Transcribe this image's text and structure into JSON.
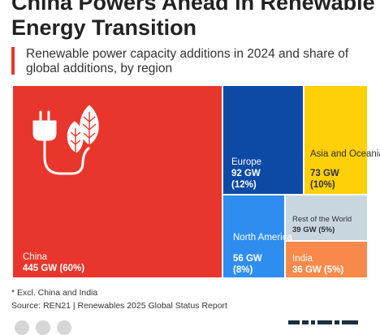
{
  "header": {
    "title": "China Powers Ahead in Renewable Energy Transition",
    "subtitle": "Renewable power capacity additions in 2024 and share of global additions, by region"
  },
  "footer": {
    "footnote": "* Excl. China and India",
    "source": "Source: REN21 | Renewables 2025 Global Status Report"
  },
  "icons": [
    "plug-icon",
    "leaves-icon"
  ],
  "chart_data": {
    "type": "treemap",
    "unit": "GW",
    "regions": [
      {
        "name": "China",
        "value": 445,
        "share": 60,
        "value_label": "445 GW (60%)",
        "color": "#e8362c"
      },
      {
        "name": "Europe",
        "value": 92,
        "share": 12,
        "value_label": "92 GW",
        "share_label": "(12%)",
        "color": "#0c4aa6"
      },
      {
        "name": "Asia and Oceania*",
        "value": 73,
        "share": 10,
        "value_label": "73 GW",
        "share_label": "(10%)",
        "color": "#fdd008"
      },
      {
        "name": "North America",
        "value": 56,
        "share": 8,
        "value_label": "56 GW",
        "share_label": "(8%)",
        "color": "#2f8df0"
      },
      {
        "name": "Rest of the World",
        "value": 39,
        "share": 5,
        "value_label": "39 GW (5%)",
        "color": "#c8d6df"
      },
      {
        "name": "India",
        "value": 36,
        "share": 5,
        "value_label": "36 GW (5%)",
        "color": "#f7894a"
      }
    ]
  }
}
